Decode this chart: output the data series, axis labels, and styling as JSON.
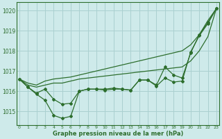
{
  "title": "Graphe pression niveau de la mer (hPa)",
  "bg_color": "#ceeaea",
  "grid_color": "#aad0d0",
  "line_color": "#2d6e2d",
  "yticks": [
    1015,
    1016,
    1017,
    1018,
    1019,
    1020
  ],
  "xticks": [
    0,
    1,
    2,
    3,
    4,
    5,
    6,
    7,
    8,
    9,
    10,
    11,
    12,
    13,
    14,
    15,
    16,
    17,
    18,
    19,
    20,
    21,
    22,
    23
  ],
  "xlim": [
    -0.3,
    23.3
  ],
  "ylim": [
    1014.3,
    1020.4
  ],
  "series_smooth": [
    [
      1016.6,
      1016.4,
      1016.3,
      1016.5,
      1016.6,
      1016.65,
      1016.7,
      1016.8,
      1016.9,
      1017.0,
      1017.1,
      1017.2,
      1017.3,
      1017.4,
      1017.5,
      1017.6,
      1017.7,
      1017.8,
      1017.9,
      1018.0,
      1018.3,
      1018.8,
      1019.5,
      1020.1
    ],
    [
      1016.6,
      1016.3,
      1016.2,
      1016.3,
      1016.4,
      1016.4,
      1016.5,
      1016.6,
      1016.65,
      1016.7,
      1016.75,
      1016.8,
      1016.85,
      1016.9,
      1016.95,
      1017.0,
      1017.05,
      1017.1,
      1017.15,
      1017.2,
      1017.5,
      1018.0,
      1018.7,
      1020.1
    ]
  ],
  "series_marked_1": [
    1016.6,
    1016.2,
    1015.9,
    1016.1,
    1015.6,
    1015.35,
    1015.4,
    1016.0,
    1016.1,
    1016.1,
    1016.1,
    1016.15,
    1016.1,
    1016.05,
    1016.55,
    1016.55,
    1016.3,
    1017.2,
    1016.8,
    1016.65,
    1017.9,
    1018.8,
    1019.4,
    1020.1
  ],
  "series_marked_2": [
    1016.6,
    1016.2,
    1015.85,
    1015.55,
    1014.8,
    1014.65,
    1014.75,
    1016.0,
    1016.1,
    1016.1,
    1016.05,
    1016.1,
    1016.1,
    1016.05,
    1016.55,
    1016.55,
    1016.25,
    1016.65,
    1016.45,
    1016.5,
    1017.95,
    1018.75,
    1019.35,
    1020.1
  ]
}
